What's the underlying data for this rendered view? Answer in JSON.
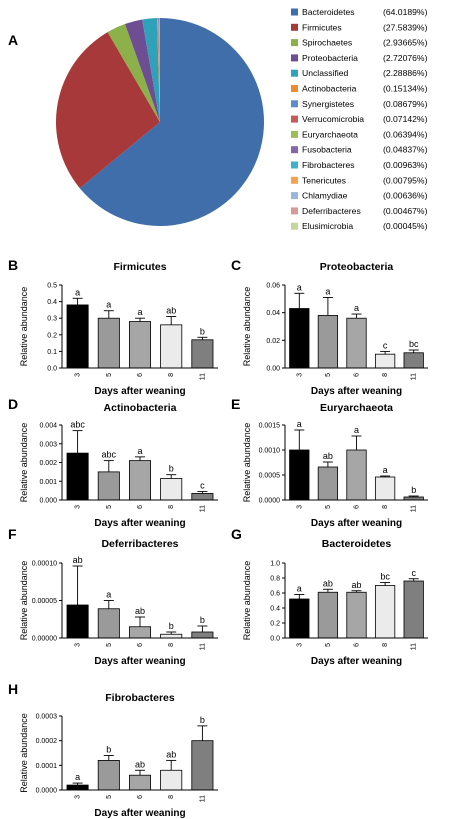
{
  "chart_data": [
    {
      "type": "pie",
      "panel": "A",
      "slices": [
        {
          "label": "Bacteroidetes",
          "pct": "(64.0189%)",
          "value": 64.0189,
          "color": "#3f6eaa"
        },
        {
          "label": "Firmicutes",
          "pct": "(27.5839%)",
          "value": 27.5839,
          "color": "#a8393a"
        },
        {
          "label": "Spirochaetes",
          "pct": "(2.93665%)",
          "value": 2.93665,
          "color": "#8cb04a"
        },
        {
          "label": "Proteobacteria",
          "pct": "(2.72076%)",
          "value": 2.72076,
          "color": "#6e4d92"
        },
        {
          "label": "Unclassified",
          "pct": "(2.28886%)",
          "value": 2.28886,
          "color": "#2fa2b9"
        },
        {
          "label": "Actinobacteria",
          "pct": "(0.15134%)",
          "value": 0.15134,
          "color": "#ef8b2d"
        },
        {
          "label": "Synergistetes",
          "pct": "(0.08679%)",
          "value": 0.08679,
          "color": "#5e8dc8"
        },
        {
          "label": "Verrucomicrobia",
          "pct": "(0.07142%)",
          "value": 0.07142,
          "color": "#c65a5a"
        },
        {
          "label": "Euryarchaeota",
          "pct": "(0.06394%)",
          "value": 0.06394,
          "color": "#9bbf56"
        },
        {
          "label": "Fusobacteria",
          "pct": "(0.04837%)",
          "value": 0.04837,
          "color": "#8765a8"
        },
        {
          "label": "Fibrobacteres",
          "pct": "(0.00963%)",
          "value": 0.00963,
          "color": "#3bb3cc"
        },
        {
          "label": "Tenericutes",
          "pct": "(0.00795%)",
          "value": 0.00795,
          "color": "#f4a24c"
        },
        {
          "label": "Chlamydiae",
          "pct": "(0.00636%)",
          "value": 0.00636,
          "color": "#9bb6dd"
        },
        {
          "label": "Deferribacteres",
          "pct": "(0.00467%)",
          "value": 0.00467,
          "color": "#d79a98"
        },
        {
          "label": "Elusimicrobia",
          "pct": "(0.00045%)",
          "value": 0.00045,
          "color": "#c3d69b"
        }
      ]
    },
    {
      "type": "bar",
      "panel": "B",
      "title": "Firmicutes",
      "categories": [
        "3",
        "5",
        "6",
        "8",
        "11"
      ],
      "values": [
        0.38,
        0.3,
        0.28,
        0.26,
        0.17
      ],
      "errors": [
        0.04,
        0.045,
        0.02,
        0.05,
        0.015
      ],
      "letters": [
        "a",
        "a",
        "a",
        "ab",
        "b"
      ],
      "ylim": [
        0.0,
        0.5
      ],
      "yticks": [
        "0.0",
        "0.1",
        "0.2",
        "0.3",
        "0.4",
        "0.5"
      ],
      "ytick_values": [
        0,
        0.1,
        0.2,
        0.3,
        0.4,
        0.5
      ],
      "ylabel": "Relative abundance",
      "xlabel": "Days after weaning"
    },
    {
      "type": "bar",
      "panel": "C",
      "title": "Proteobacteria",
      "categories": [
        "3",
        "5",
        "6",
        "8",
        "11"
      ],
      "values": [
        0.043,
        0.038,
        0.036,
        0.01,
        0.011
      ],
      "errors": [
        0.011,
        0.013,
        0.003,
        0.002,
        0.002
      ],
      "letters": [
        "a",
        "a",
        "a",
        "c",
        "bc"
      ],
      "ylim": [
        0,
        0.06
      ],
      "yticks": [
        "0.00",
        "0.02",
        "0.04",
        "0.06"
      ],
      "ytick_values": [
        0,
        0.02,
        0.04,
        0.06
      ],
      "ylabel": "Relative abundance",
      "xlabel": "Days after weaning"
    },
    {
      "type": "bar",
      "panel": "D",
      "title": "Actinobacteria",
      "categories": [
        "3",
        "5",
        "6",
        "8",
        "11"
      ],
      "values": [
        0.0025,
        0.0015,
        0.0021,
        0.00115,
        0.00035
      ],
      "errors": [
        0.0012,
        0.0006,
        0.0002,
        0.0002,
        0.0001
      ],
      "letters": [
        "abc",
        "abc",
        "a",
        "b",
        "c"
      ],
      "ylim": [
        0,
        0.004
      ],
      "yticks": [
        "0.000",
        "0.001",
        "0.002",
        "0.003",
        "0.004"
      ],
      "ytick_values": [
        0,
        0.001,
        0.002,
        0.003,
        0.004
      ],
      "ylabel": "Relative abundance",
      "xlabel": "Days after weaning"
    },
    {
      "type": "bar",
      "panel": "E",
      "title": "Euryarchaeota",
      "categories": [
        "3",
        "5",
        "6",
        "8",
        "11"
      ],
      "values": [
        0.001,
        0.00066,
        0.001,
        0.00046,
        6e-05
      ],
      "errors": [
        0.0004,
        0.0001,
        0.00028,
        2e-05,
        2e-05
      ],
      "letters": [
        "a",
        "ab",
        "a",
        "a",
        "b"
      ],
      "ylim": [
        0,
        0.0015
      ],
      "yticks": [
        "0.0000",
        "0.0005",
        "0.0010",
        "0.0015"
      ],
      "ytick_values": [
        0,
        0.0005,
        0.001,
        0.0015
      ],
      "ylabel": "Relative abundance",
      "xlabel": "Days after weaning"
    },
    {
      "type": "bar",
      "panel": "F",
      "title": "Deferribacteres",
      "categories": [
        "3",
        "5",
        "6",
        "8",
        "11"
      ],
      "values": [
        4.4e-05,
        3.9e-05,
        1.5e-05,
        5e-06,
        8e-06
      ],
      "errors": [
        5.2e-05,
        1.1e-05,
        1.3e-05,
        3e-06,
        8e-06
      ],
      "letters": [
        "ab",
        "a",
        "ab",
        "b",
        "b"
      ],
      "ylim": [
        0,
        0.0001
      ],
      "yticks": [
        "0.00000",
        "0.00005",
        "0.00010"
      ],
      "ytick_values": [
        0,
        5e-05,
        0.0001
      ],
      "ylabel": "Relative abundance",
      "xlabel": "Days after weaning"
    },
    {
      "type": "bar",
      "panel": "G",
      "title": "Bacteroidetes",
      "categories": [
        "3",
        "5",
        "6",
        "8",
        "11"
      ],
      "values": [
        0.52,
        0.61,
        0.61,
        0.7,
        0.76
      ],
      "errors": [
        0.06,
        0.04,
        0.02,
        0.04,
        0.03
      ],
      "letters": [
        "a",
        "ab",
        "ab",
        "bc",
        "c"
      ],
      "ylim": [
        0.0,
        1.0
      ],
      "yticks": [
        "0.0",
        "0.2",
        "0.4",
        "0.6",
        "0.8",
        "1.0"
      ],
      "ytick_values": [
        0,
        0.2,
        0.4,
        0.6,
        0.8,
        1.0
      ],
      "ylabel": "Relative abundance",
      "xlabel": "Days after weaning"
    },
    {
      "type": "bar",
      "panel": "H",
      "title": "Fibrobacteres",
      "categories": [
        "3",
        "5",
        "6",
        "8",
        "11"
      ],
      "values": [
        2e-05,
        0.00012,
        6e-05,
        8e-05,
        0.0002
      ],
      "errors": [
        8e-06,
        2e-05,
        2e-05,
        4e-05,
        6e-05
      ],
      "letters": [
        "a",
        "b",
        "ab",
        "ab",
        "b"
      ],
      "ylim": [
        0,
        0.0003
      ],
      "yticks": [
        "0.0000",
        "0.0001",
        "0.0002",
        "0.0003"
      ],
      "ytick_values": [
        0,
        0.0001,
        0.0002,
        0.0003
      ],
      "ylabel": "Relative abundance",
      "xlabel": "Days after weaning"
    }
  ],
  "bar_fills": [
    "#000000",
    "#9a9a9a",
    "#a6a6a6",
    "#ebebeb",
    "#7f7f7f"
  ]
}
